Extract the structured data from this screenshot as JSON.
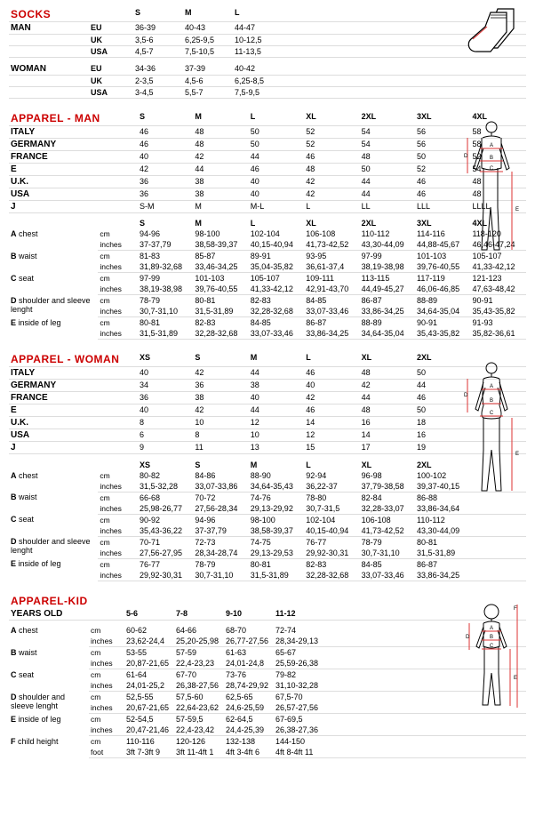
{
  "socks": {
    "title": "SOCKS",
    "man": "MAN",
    "woman": "WOMAN",
    "sizes": [
      "S",
      "M",
      "L"
    ],
    "man_rows": [
      {
        "region": "EU",
        "v": [
          "36-39",
          "40-43",
          "44-47"
        ]
      },
      {
        "region": "UK",
        "v": [
          "3,5-6",
          "6,25-9,5",
          "10-12,5"
        ]
      },
      {
        "region": "USA",
        "v": [
          "4,5-7",
          "7,5-10,5",
          "11-13,5"
        ]
      }
    ],
    "woman_rows": [
      {
        "region": "EU",
        "v": [
          "34-36",
          "37-39",
          "40-42"
        ]
      },
      {
        "region": "UK",
        "v": [
          "2-3,5",
          "4,5-6",
          "6,25-8,5"
        ]
      },
      {
        "region": "USA",
        "v": [
          "3-4,5",
          "5,5-7",
          "7,5-9,5"
        ]
      }
    ]
  },
  "apparel_man": {
    "title": "APPAREL - MAN",
    "sizes": [
      "S",
      "M",
      "L",
      "XL",
      "2XL",
      "3XL",
      "4XL"
    ],
    "region_rows": [
      {
        "region": "ITALY",
        "v": [
          "46",
          "48",
          "50",
          "52",
          "54",
          "56",
          "58"
        ]
      },
      {
        "region": "GERMANY",
        "v": [
          "46",
          "48",
          "50",
          "52",
          "54",
          "56",
          "58"
        ]
      },
      {
        "region": "FRANCE",
        "v": [
          "40",
          "42",
          "44",
          "46",
          "48",
          "50",
          "52"
        ]
      },
      {
        "region": "E",
        "v": [
          "42",
          "44",
          "46",
          "48",
          "50",
          "52",
          "54"
        ]
      },
      {
        "region": "U.K.",
        "v": [
          "36",
          "38",
          "40",
          "42",
          "44",
          "46",
          "48"
        ]
      },
      {
        "region": "USA",
        "v": [
          "36",
          "38",
          "40",
          "42",
          "44",
          "46",
          "48"
        ]
      },
      {
        "region": "J",
        "v": [
          "S-M",
          "M",
          "M-L",
          "L",
          "LL",
          "LLL",
          "LLLL"
        ]
      }
    ],
    "meas_sizes": [
      "S",
      "M",
      "L",
      "XL",
      "2XL",
      "3XL",
      "4XL"
    ],
    "meas": [
      {
        "label": "A chest",
        "cm": [
          "94-96",
          "98-100",
          "102-104",
          "106-108",
          "110-112",
          "114-116",
          "118-120"
        ],
        "in": [
          "37-37,79",
          "38,58-39,37",
          "40,15-40,94",
          "41,73-42,52",
          "43,30-44,09",
          "44,88-45,67",
          "46,46-47,24"
        ]
      },
      {
        "label": "B waist",
        "cm": [
          "81-83",
          "85-87",
          "89-91",
          "93-95",
          "97-99",
          "101-103",
          "105-107"
        ],
        "in": [
          "31,89-32,68",
          "33,46-34,25",
          "35,04-35,82",
          "36,61-37,4",
          "38,19-38,98",
          "39,76-40,55",
          "41,33-42,12"
        ]
      },
      {
        "label": "C seat",
        "cm": [
          "97-99",
          "101-103",
          "105-107",
          "109-111",
          "113-115",
          "117-119",
          "121-123"
        ],
        "in": [
          "38,19-38,98",
          "39,76-40,55",
          "41,33-42,12",
          "42,91-43,70",
          "44,49-45,27",
          "46,06-46,85",
          "47,63-48,42"
        ]
      },
      {
        "label": "D shoulder and sleeve lenght",
        "cm": [
          "78-79",
          "80-81",
          "82-83",
          "84-85",
          "86-87",
          "88-89",
          "90-91"
        ],
        "in": [
          "30,7-31,10",
          "31,5-31,89",
          "32,28-32,68",
          "33,07-33,46",
          "33,86-34,25",
          "34,64-35,04",
          "35,43-35,82"
        ]
      },
      {
        "label": "E inside of leg",
        "cm": [
          "80-81",
          "82-83",
          "84-85",
          "86-87",
          "88-89",
          "90-91",
          "91-93"
        ],
        "in": [
          "31,5-31,89",
          "32,28-32,68",
          "33,07-33,46",
          "33,86-34,25",
          "34,64-35,04",
          "35,43-35,82",
          "35,82-36,61"
        ]
      }
    ]
  },
  "apparel_woman": {
    "title": "APPAREL - WOMAN",
    "sizes": [
      "XS",
      "S",
      "M",
      "L",
      "XL",
      "2XL"
    ],
    "region_rows": [
      {
        "region": "ITALY",
        "v": [
          "40",
          "42",
          "44",
          "46",
          "48",
          "50"
        ]
      },
      {
        "region": "GERMANY",
        "v": [
          "34",
          "36",
          "38",
          "40",
          "42",
          "44"
        ]
      },
      {
        "region": "FRANCE",
        "v": [
          "36",
          "38",
          "40",
          "42",
          "44",
          "46"
        ]
      },
      {
        "region": "E",
        "v": [
          "40",
          "42",
          "44",
          "46",
          "48",
          "50"
        ]
      },
      {
        "region": "U.K.",
        "v": [
          "8",
          "10",
          "12",
          "14",
          "16",
          "18"
        ]
      },
      {
        "region": "USA",
        "v": [
          "6",
          "8",
          "10",
          "12",
          "14",
          "16"
        ]
      },
      {
        "region": "J",
        "v": [
          "9",
          "11",
          "13",
          "15",
          "17",
          "19"
        ]
      }
    ],
    "meas_sizes": [
      "XS",
      "S",
      "M",
      "L",
      "XL",
      "2XL"
    ],
    "meas": [
      {
        "label": "A chest",
        "cm": [
          "80-82",
          "84-86",
          "88-90",
          "92-94",
          "96-98",
          "100-102"
        ],
        "in": [
          "31,5-32,28",
          "33,07-33,86",
          "34,64-35,43",
          "36,22-37",
          "37,79-38,58",
          "39,37-40,15"
        ]
      },
      {
        "label": "B waist",
        "cm": [
          "66-68",
          "70-72",
          "74-76",
          "78-80",
          "82-84",
          "86-88"
        ],
        "in": [
          "25,98-26,77",
          "27,56-28,34",
          "29,13-29,92",
          "30,7-31,5",
          "32,28-33,07",
          "33,86-34,64"
        ]
      },
      {
        "label": "C seat",
        "cm": [
          "90-92",
          "94-96",
          "98-100",
          "102-104",
          "106-108",
          "110-112"
        ],
        "in": [
          "35,43-36,22",
          "37-37,79",
          "38,58-39,37",
          "40,15-40,94",
          "41,73-42,52",
          "43,30-44,09"
        ]
      },
      {
        "label": "D shoulder and sleeve lenght",
        "cm": [
          "70-71",
          "72-73",
          "74-75",
          "76-77",
          "78-79",
          "80-81"
        ],
        "in": [
          "27,56-27,95",
          "28,34-28,74",
          "29,13-29,53",
          "29,92-30,31",
          "30,7-31,10",
          "31,5-31,89"
        ]
      },
      {
        "label": "E inside of leg",
        "cm": [
          "76-77",
          "78-79",
          "80-81",
          "82-83",
          "84-85",
          "86-87"
        ],
        "in": [
          "29,92-30,31",
          "30,7-31,10",
          "31,5-31,89",
          "32,28-32,68",
          "33,07-33,46",
          "33,86-34,25"
        ]
      }
    ]
  },
  "apparel_kid": {
    "title": "APPAREL-KID",
    "years": "YEARS OLD",
    "sizes": [
      "5-6",
      "7-8",
      "9-10",
      "11-12"
    ],
    "meas": [
      {
        "label": "A chest",
        "cm": [
          "60-62",
          "64-66",
          "68-70",
          "72-74"
        ],
        "in": [
          "23,62-24,4",
          "25,20-25,98",
          "26,77-27,56",
          "28,34-29,13"
        ]
      },
      {
        "label": "B waist",
        "cm": [
          "53-55",
          "57-59",
          "61-63",
          "65-67"
        ],
        "in": [
          "20,87-21,65",
          "22,4-23,23",
          "24,01-24,8",
          "25,59-26,38"
        ]
      },
      {
        "label": "C seat",
        "cm": [
          "61-64",
          "67-70",
          "73-76",
          "79-82"
        ],
        "in": [
          "24,01-25,2",
          "26,38-27,56",
          "28,74-29,92",
          "31,10-32,28"
        ]
      },
      {
        "label": "D shoulder and sleeve lenght",
        "cm": [
          "52,5-55",
          "57,5-60",
          "62,5-65",
          "67,5-70"
        ],
        "in": [
          "20,67-21,65",
          "22,64-23,62",
          "24,6-25,59",
          "26,57-27,56"
        ]
      },
      {
        "label": "E inside of leg",
        "cm": [
          "52-54,5",
          "57-59,5",
          "62-64,5",
          "67-69,5"
        ],
        "in": [
          "20,47-21,46",
          "22,4-23,42",
          "24,4-25,39",
          "26,38-27,36"
        ]
      },
      {
        "label": "F child height",
        "cm": [
          "110-116",
          "120-126",
          "132-138",
          "144-150"
        ],
        "in_unit": "foot",
        "in": [
          "3ft 7-3ft 9",
          "3ft 11-4ft 1",
          "4ft 3-4ft 6",
          "4ft 8-4ft 11"
        ]
      }
    ]
  },
  "diagram_labels": {
    "A": "A",
    "B": "B",
    "C": "C",
    "D": "D",
    "E": "E",
    "F": "F"
  }
}
